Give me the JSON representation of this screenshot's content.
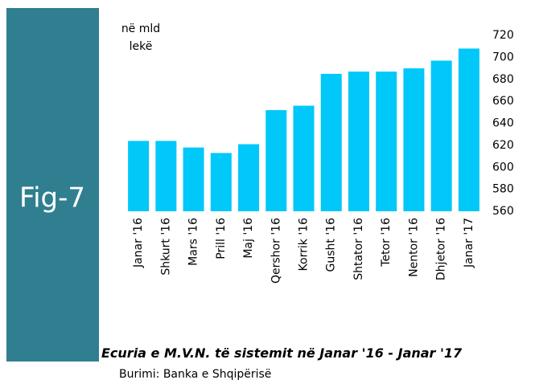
{
  "figure_label": "Fig-7",
  "chart_data": {
    "type": "bar",
    "ylabel": "në mld lekë",
    "title": "Ecuria e M.V.N. të sistemit në Janar '16  - Janar '17",
    "source": "Burimi: Banka e Shqipërisë",
    "categories": [
      "Janar '16",
      "Shkurt '16",
      "Mars '16",
      "Prill '16",
      "Maj '16",
      "Qershor '16",
      "Korrik '16",
      "Gusht '16",
      "Shtator '16",
      "Tetor '16",
      "Nentor '16",
      "Dhjetor '16",
      "Janar '17"
    ],
    "values": [
      624,
      624,
      618,
      613,
      621,
      652,
      656,
      685,
      687,
      687,
      690,
      697,
      708
    ],
    "color": "#00c8f8",
    "ylim": [
      560,
      720
    ],
    "yticks": [
      560,
      580,
      600,
      620,
      640,
      660,
      680,
      700,
      720
    ],
    "y_axis_side": "right",
    "grid": false
  }
}
